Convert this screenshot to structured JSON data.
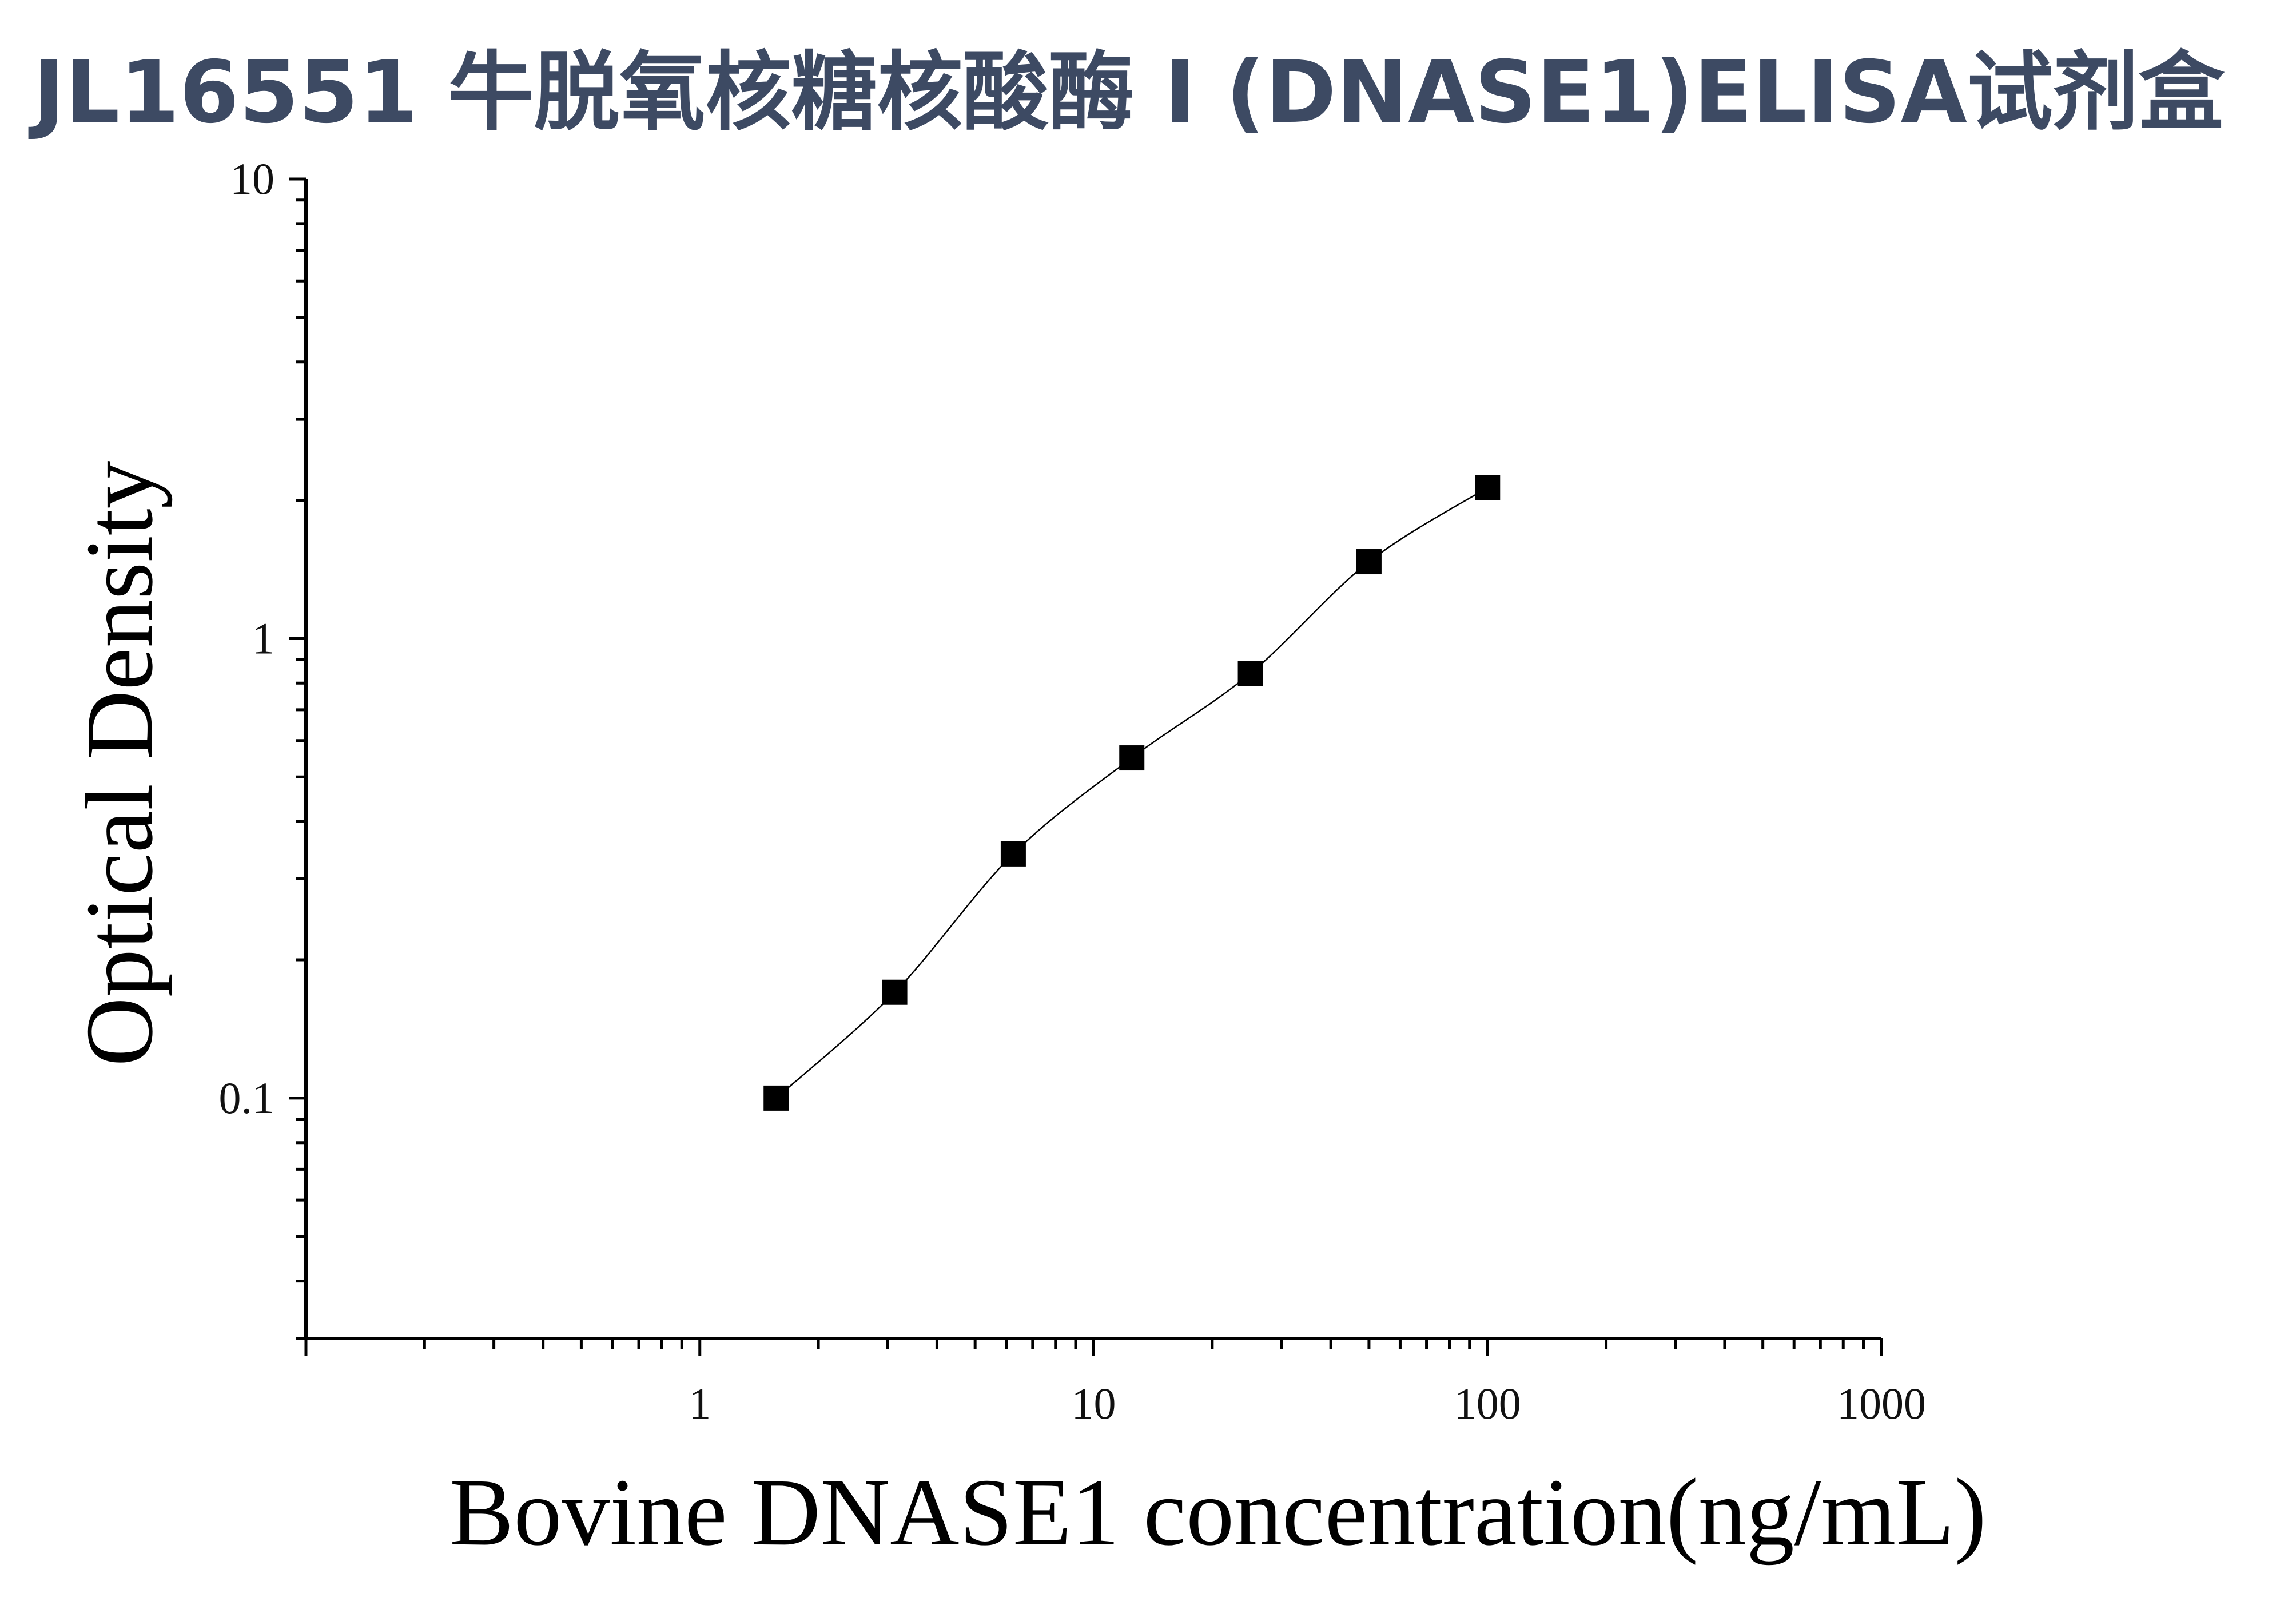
{
  "title": "JL16551 牛脱氧核糖核酸酶 I (DNASE1)ELISA试剂盒",
  "chart_data": {
    "type": "scatter",
    "title": "JL16551 牛脱氧核糖核酸酶 I (DNASE1)ELISA试剂盒",
    "xlabel": "Bovine DNASE1 concentration(ng/mL)",
    "ylabel": "Optical Density",
    "x_scale": "log",
    "y_scale": "log",
    "xlim": [
      0.1,
      1000
    ],
    "ylim": [
      0.03,
      10
    ],
    "x_ticks": [
      "1",
      "10",
      "100",
      "1000"
    ],
    "y_ticks": [
      "0.1",
      "1",
      "10"
    ],
    "grid": false,
    "legend": "none",
    "marker": "square",
    "marker_color": "#000000",
    "fit_curve": true,
    "series": [
      {
        "x": [
          1.5625,
          3.125,
          6.25,
          12.5,
          25,
          50,
          100
        ],
        "y": [
          0.1,
          0.17,
          0.34,
          0.55,
          0.84,
          1.47,
          2.13
        ]
      }
    ]
  }
}
